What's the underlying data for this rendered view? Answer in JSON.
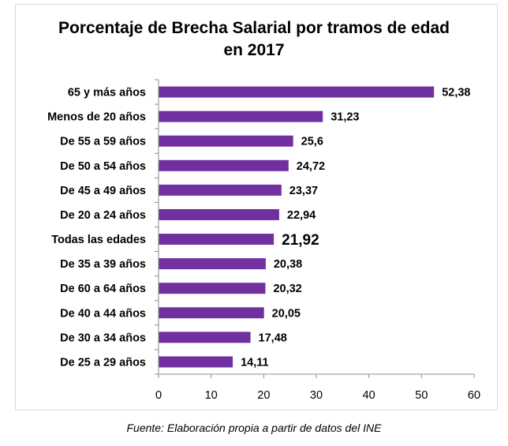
{
  "chart_data": {
    "type": "bar",
    "orientation": "horizontal",
    "title_line1": "Porcentaje de Brecha Salarial por tramos de edad",
    "title_line2": "en 2017",
    "categories": [
      "65 y más años",
      "Menos de 20 años",
      "De 55 a 59 años",
      "De 50 a 54 años",
      "De 45 a 49 años",
      "De 20 a 24 años",
      "Todas las edades",
      "De 35 a 39 años",
      "De 60 a 64 años",
      "De 40 a 44 años",
      "De 30 a 34 años",
      "De 25 a 29 años"
    ],
    "values": [
      52.38,
      31.23,
      25.6,
      24.72,
      23.37,
      22.94,
      21.92,
      20.38,
      20.32,
      20.05,
      17.48,
      14.11
    ],
    "value_labels": [
      "52,38",
      "31,23",
      "25,6",
      "24,72",
      "23,37",
      "22,94",
      "21,92",
      "20,38",
      "20,32",
      "20,05",
      "17,48",
      "14,11"
    ],
    "highlighted_category": "Todas las edades",
    "xlim": [
      0,
      60
    ],
    "xticks": [
      0,
      10,
      20,
      30,
      40,
      50,
      60
    ],
    "grid": false,
    "legend": "none",
    "bar_color": "#7030a0"
  },
  "source_text": "Fuente: Elaboración propia a partir de datos del INE"
}
